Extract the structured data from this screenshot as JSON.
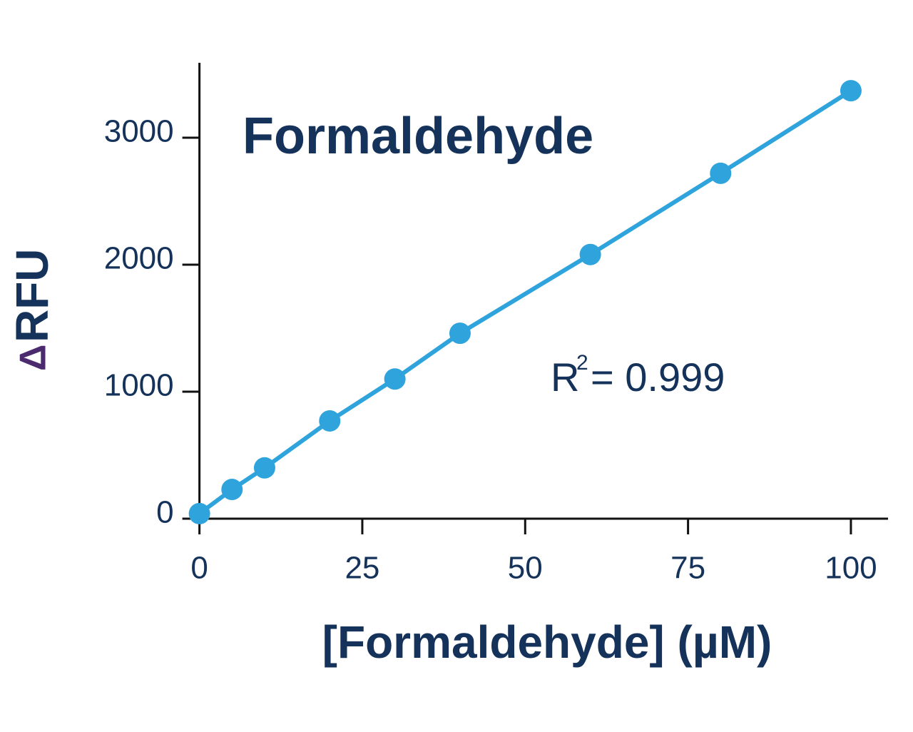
{
  "chart_data": {
    "type": "line",
    "title": "Formaldehyde",
    "x_label": "[Formaldehyde] (µM)",
    "y_label": {
      "symbol": "Δ",
      "text": "RFU"
    },
    "annotation": {
      "base": "R",
      "superscript": "2",
      "rest": "= 0.999"
    },
    "x": [
      0,
      5,
      10,
      20,
      30,
      40,
      60,
      80,
      100
    ],
    "series": [
      {
        "name": "Formaldehyde",
        "color": "#2ea3dc",
        "values": [
          40,
          230,
          400,
          770,
          1100,
          1460,
          2080,
          2720,
          3370
        ]
      }
    ],
    "xlim": [
      -1.6,
      105.7
    ],
    "xticks": [
      0,
      25,
      50,
      75,
      100
    ],
    "ylim": [
      0,
      3590
    ],
    "yticks": [
      0,
      1000,
      2000,
      3000
    ],
    "markers": true
  }
}
